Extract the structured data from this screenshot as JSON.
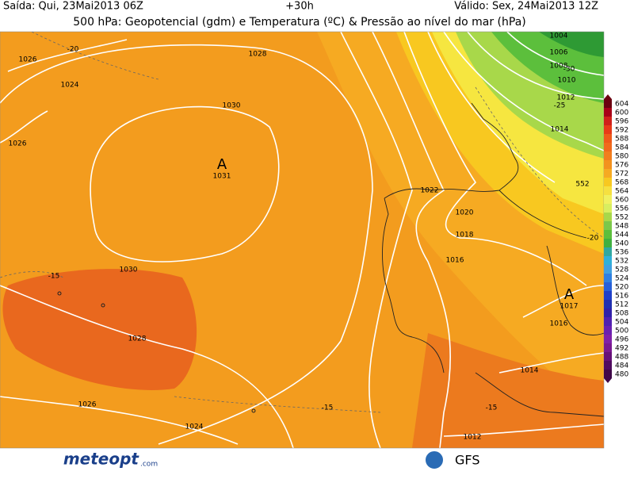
{
  "header": {
    "left": "Saída: Qui, 23Mai2013 06Z",
    "center": "+30h",
    "right": "Válido: Sex, 24Mai2013 12Z",
    "title": "500 hPa: Geopotencial (gdm) e Temperatura (ºC) & Pressão ao nível do mar (hPa)"
  },
  "contour_labels": [
    1026,
    -20,
    1024,
    1028,
    1030,
    1026,
    1030,
    -15,
    1028,
    1026,
    1024,
    -15,
    1022,
    1020,
    1018,
    1016,
    1014,
    1012,
    -25,
    1010,
    1008,
    1006,
    1004,
    -30,
    552,
    -20,
    1016,
    1014,
    -15,
    1012
  ],
  "highs": [
    {
      "symbol": "A",
      "value": 1031
    },
    {
      "symbol": "A",
      "value": 1017
    }
  ],
  "colorbar": {
    "labels": [
      604,
      600,
      596,
      592,
      588,
      584,
      580,
      576,
      572,
      568,
      564,
      560,
      556,
      552,
      548,
      544,
      540,
      536,
      532,
      528,
      524,
      520,
      516,
      512,
      508,
      504,
      500,
      496,
      492,
      488,
      484,
      480
    ]
  },
  "footer": {
    "logo": "meteopt",
    "logo_suffix": ".com",
    "model": "GFS"
  }
}
